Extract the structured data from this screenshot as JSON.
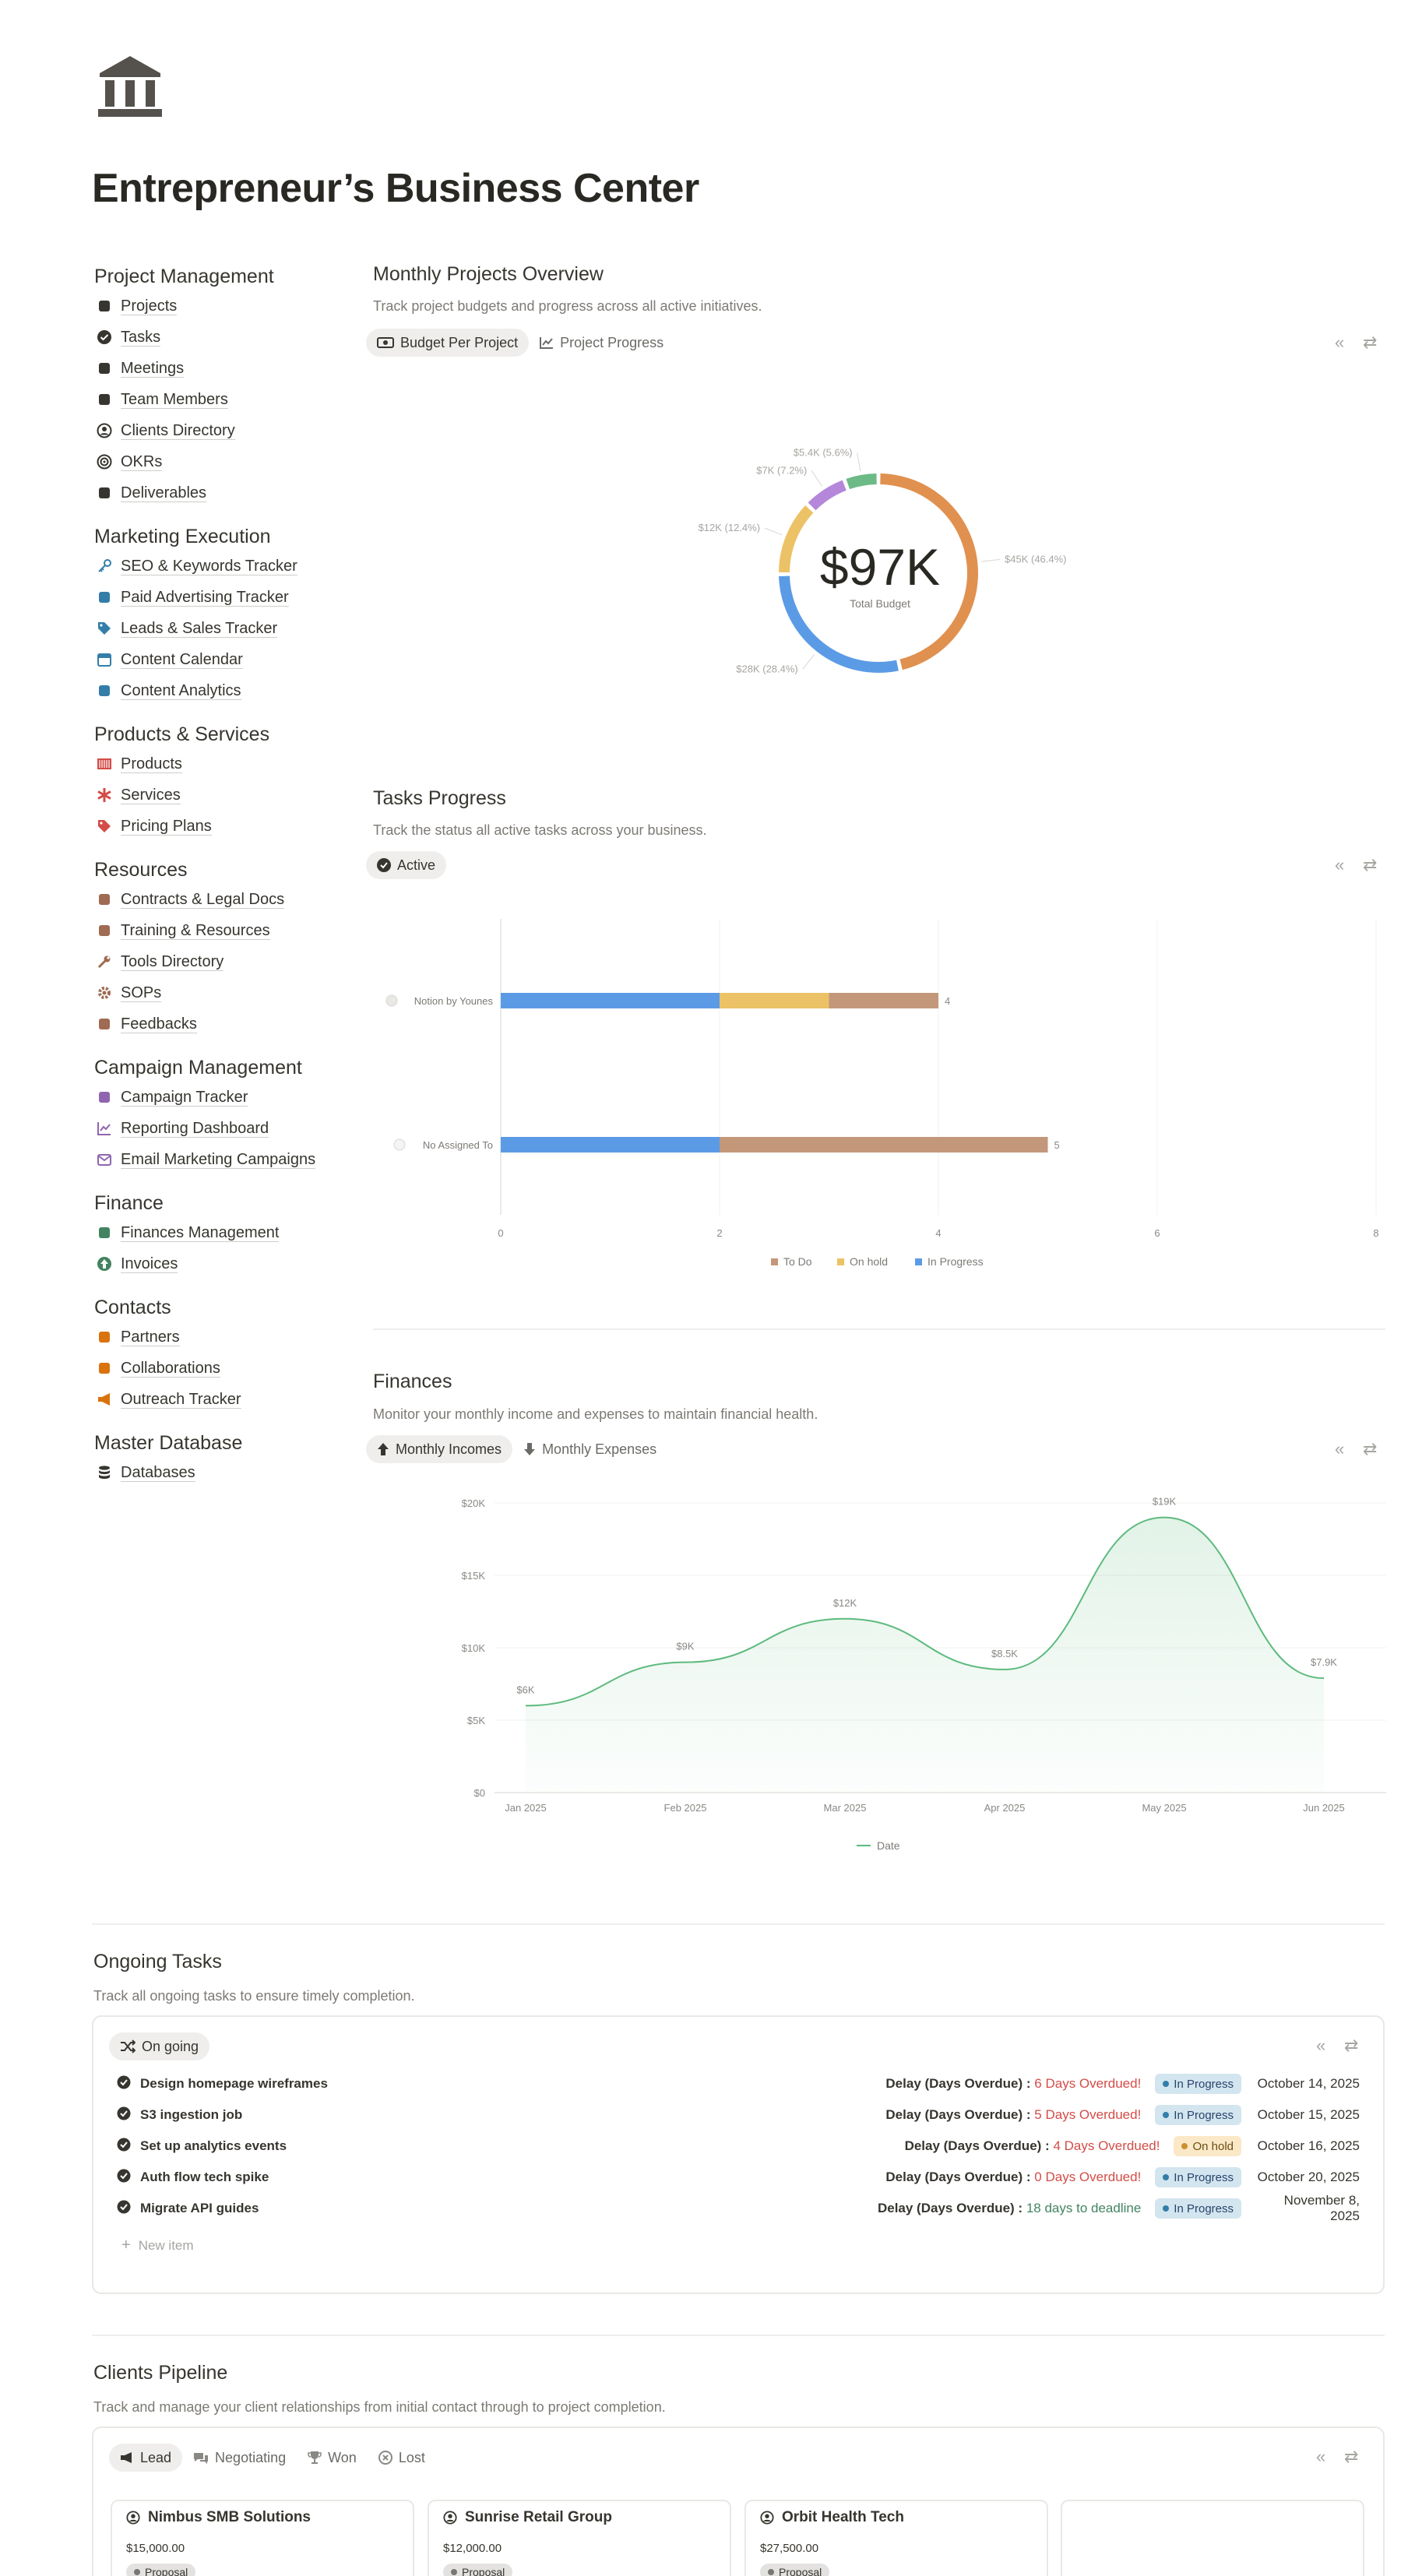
{
  "page": {
    "title": "Entrepreneur’s Business Center"
  },
  "sidebar": {
    "sections": [
      {
        "title": "Project Management",
        "items": [
          "Projects",
          "Tasks",
          "Meetings",
          "Team Members",
          "Clients Directory",
          "OKRs",
          "Deliverables"
        ]
      },
      {
        "title": "Marketing Execution",
        "items": [
          "SEO & Keywords Tracker",
          "Paid Advertising Tracker",
          "Leads & Sales Tracker",
          "Content Calendar",
          "Content Analytics"
        ]
      },
      {
        "title": "Products & Services",
        "items": [
          "Products",
          "Services",
          "Pricing Plans"
        ]
      },
      {
        "title": "Resources",
        "items": [
          "Contracts & Legal Docs",
          "Training & Resources",
          "Tools Directory",
          "SOPs",
          "Feedbacks"
        ]
      },
      {
        "title": "Campaign Management",
        "items": [
          "Campaign Tracker",
          "Reporting Dashboard",
          "Email Marketing Campaigns"
        ]
      },
      {
        "title": "Finance",
        "items": [
          "Finances Management",
          "Invoices"
        ]
      },
      {
        "title": "Contacts",
        "items": [
          "Partners",
          "Collaborations",
          "Outreach Tracker"
        ]
      },
      {
        "title": "Master Database",
        "items": [
          "Databases"
        ]
      }
    ]
  },
  "monthly_projects": {
    "title": "Monthly Projects Overview",
    "description": "Track project budgets and progress across all active initiatives.",
    "tabs": [
      "Budget Per Project",
      "Project Progress"
    ],
    "center_value": "$97K",
    "center_label": "Total Budget"
  },
  "tasks_progress": {
    "title": "Tasks Progress",
    "description": "Track the status all active tasks across your business.",
    "tab": "Active"
  },
  "finances": {
    "title": "Finances",
    "description": "Monitor your monthly income and expenses to maintain financial health.",
    "tabs": [
      "Monthly Incomes",
      "Monthly Expenses"
    ]
  },
  "ongoing_tasks": {
    "title": "Ongoing Tasks",
    "description": "Track all ongoing tasks to ensure timely completion.",
    "tab": "On going",
    "delay_label": "Delay (Days Overdue) :",
    "rows": [
      {
        "name": "Design homepage wireframes",
        "delay": "6 Days Overdued!",
        "status": "In Progress",
        "date": "October 14, 2025"
      },
      {
        "name": "S3 ingestion job",
        "delay": "5 Days Overdued!",
        "status": "In Progress",
        "date": "October 15, 2025"
      },
      {
        "name": "Set up analytics events",
        "delay": "4 Days Overdued!",
        "status": "On hold",
        "date": "October 16, 2025"
      },
      {
        "name": "Auth flow tech spike",
        "delay": "0 Days Overdued!",
        "status": "In Progress",
        "date": "October 20, 2025"
      },
      {
        "name": "Migrate API guides",
        "delay": "18 days to deadline",
        "status": "In Progress",
        "date": "November 8, 2025"
      }
    ],
    "new_item": "New item"
  },
  "clients_pipeline": {
    "title": "Clients Pipeline",
    "description": "Track and manage your client relationships from initial contact through to project completion.",
    "tabs": [
      "Lead",
      "Negotiating",
      "Won",
      "Lost"
    ],
    "cards": [
      {
        "name": "Nimbus SMB Solutions",
        "amount": "$15,000.00",
        "stage": "Proposal"
      },
      {
        "name": "Sunrise Retail Group",
        "amount": "$12,000.00",
        "stage": "Proposal"
      },
      {
        "name": "Orbit Health Tech",
        "amount": "$27,500.00",
        "stage": "Proposal"
      }
    ]
  },
  "chart_data": [
    {
      "type": "pie",
      "title": "Budget Per Project",
      "slices": [
        {
          "label": "$45K (46.4%)",
          "value": 45,
          "color": "#e0914f"
        },
        {
          "label": "$28K (28.4%)",
          "value": 27.5,
          "color": "#5b9be6"
        },
        {
          "label": "$12K (12.4%)",
          "value": 12,
          "color": "#ecc266"
        },
        {
          "label": "$7K (7.2%)",
          "value": 7,
          "color": "#b487db"
        },
        {
          "label": "$5.4K (5.6%)",
          "value": 5.4,
          "color": "#6cba86"
        }
      ]
    },
    {
      "type": "bar",
      "stacked": true,
      "orientation": "horizontal",
      "categories": [
        "Notion by Younes",
        "No Assigned To"
      ],
      "totals": [
        "4",
        "5"
      ],
      "series": [
        {
          "name": "In Progress",
          "values": [
            2,
            2
          ],
          "color": "#5b9be6"
        },
        {
          "name": "On hold",
          "values": [
            1,
            0
          ],
          "color": "#ecc266"
        },
        {
          "name": "To Do",
          "values": [
            1,
            3
          ],
          "color": "#c3977a"
        }
      ],
      "xticks": [
        "0",
        "2",
        "4",
        "6",
        "8"
      ],
      "xlim": [
        0,
        8
      ],
      "legend_order": [
        "To Do",
        "On hold",
        "In Progress"
      ],
      "legend": "bottom"
    },
    {
      "type": "area",
      "x": [
        "Jan 2025",
        "Feb 2025",
        "Mar 2025",
        "Apr 2025",
        "May 2025",
        "Jun 2025"
      ],
      "series": [
        {
          "name": "Date",
          "values": [
            6,
            9,
            12,
            8.5,
            19,
            7.9
          ],
          "color": "#5dba7d"
        }
      ],
      "data_labels": [
        "$6K",
        "$9K",
        "$12K",
        "$8.5K",
        "$19K",
        "$7.9K"
      ],
      "yticks": [
        "$0",
        "$5K",
        "$10K",
        "$15K",
        "$20K"
      ],
      "ylim": [
        0,
        20
      ],
      "legend": "bottom"
    }
  ]
}
